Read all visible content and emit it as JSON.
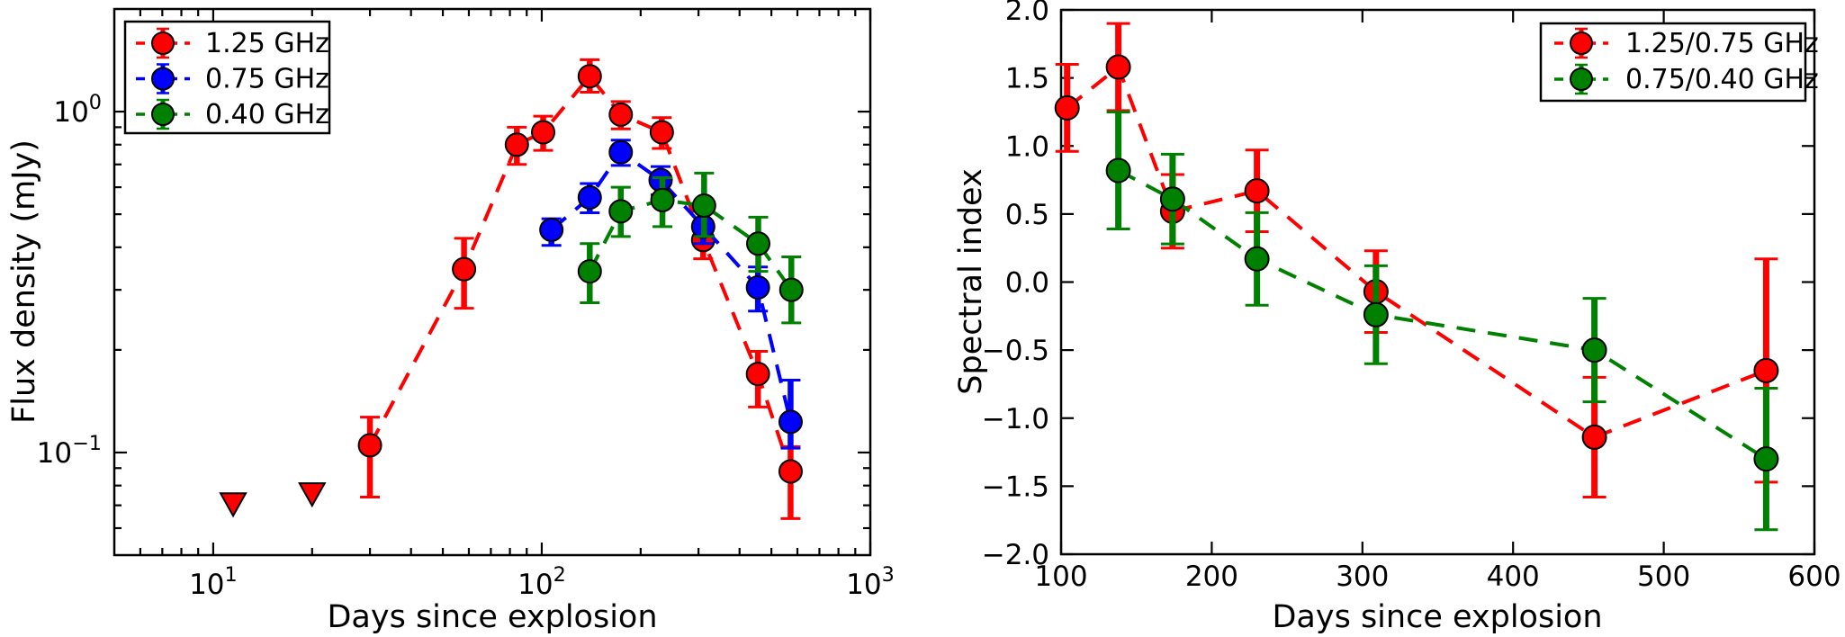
{
  "figure": {
    "description_labels": {
      "x_axis_label": "Days since explosion",
      "left_y_axis_label": "Flux density (mJy)",
      "right_y_axis_label": "Spectral index"
    }
  },
  "chart_data": [
    {
      "type": "line",
      "panel": "left",
      "title": "",
      "xlabel": "Days since explosion",
      "ylabel": "Flux density (mJy)",
      "xscale": "log",
      "yscale": "log",
      "xlim": [
        5,
        1000
      ],
      "ylim": [
        0.05,
        2.0
      ],
      "grid": false,
      "xticks": [
        {
          "value": 10,
          "exp": "1"
        },
        {
          "value": 100,
          "exp": "2"
        },
        {
          "value": 1000,
          "exp": "3"
        }
      ],
      "yticks": [
        {
          "value": 1.0,
          "exp": "0"
        },
        {
          "value": 0.1,
          "exp": "−1"
        }
      ],
      "legend_position": "upper-left",
      "line_style": "dashed",
      "series": [
        {
          "name": "1.25 GHz",
          "color": "#ff0000",
          "marker": "circle",
          "x": [
            30,
            58,
            84,
            101,
            140,
            174,
            232,
            310,
            455,
            572
          ],
          "y": [
            0.105,
            0.345,
            0.8,
            0.87,
            1.27,
            0.98,
            0.87,
            0.42,
            0.17,
            0.088
          ],
          "yerr_hi": [
            0.022,
            0.08,
            0.1,
            0.1,
            0.15,
            0.09,
            0.09,
            0.05,
            0.028,
            0.016
          ],
          "yerr_lo": [
            0.031,
            0.08,
            0.1,
            0.1,
            0.13,
            0.09,
            0.09,
            0.05,
            0.034,
            0.024
          ]
        },
        {
          "name": "0.75 GHz",
          "color": "#0000ff",
          "marker": "circle",
          "x": [
            107,
            140,
            174,
            230,
            310,
            455,
            572
          ],
          "y": [
            0.45,
            0.56,
            0.76,
            0.63,
            0.46,
            0.305,
            0.123
          ],
          "yerr_hi": [
            0.035,
            0.055,
            0.065,
            0.06,
            0.05,
            0.045,
            0.04
          ],
          "yerr_lo": [
            0.045,
            0.055,
            0.065,
            0.06,
            0.05,
            0.045,
            0.02
          ]
        },
        {
          "name": "0.40 GHz",
          "color": "#008000",
          "marker": "circle",
          "x": [
            140,
            174,
            233,
            312,
            456,
            575
          ],
          "y": [
            0.34,
            0.51,
            0.55,
            0.53,
            0.41,
            0.3
          ],
          "yerr_hi": [
            0.07,
            0.09,
            0.09,
            0.13,
            0.08,
            0.075
          ],
          "yerr_lo": [
            0.065,
            0.08,
            0.09,
            0.1,
            0.07,
            0.06
          ]
        }
      ],
      "upper_limits": {
        "series": "1.25 GHz",
        "marker": "triangle-down",
        "color": "#ff0000",
        "x": [
          11.5,
          20
        ],
        "y": [
          0.071,
          0.076
        ]
      }
    },
    {
      "type": "line",
      "panel": "right",
      "title": "",
      "xlabel": "Days since explosion",
      "ylabel": "Spectral index",
      "xscale": "linear",
      "yscale": "linear",
      "xlim": [
        100,
        600
      ],
      "ylim": [
        -2.0,
        2.0
      ],
      "grid": false,
      "xticks": [
        {
          "value": 100,
          "label": "100"
        },
        {
          "value": 200,
          "label": "200"
        },
        {
          "value": 300,
          "label": "300"
        },
        {
          "value": 400,
          "label": "400"
        },
        {
          "value": 500,
          "label": "500"
        },
        {
          "value": 600,
          "label": "600"
        }
      ],
      "yticks": [
        {
          "value": 2.0,
          "label": "2.0"
        },
        {
          "value": 1.5,
          "label": "1.5"
        },
        {
          "value": 1.0,
          "label": "1.0"
        },
        {
          "value": 0.5,
          "label": "0.5"
        },
        {
          "value": 0.0,
          "label": "0.0"
        },
        {
          "value": -0.5,
          "label": "−0.5"
        },
        {
          "value": -1.0,
          "label": "−1.0"
        },
        {
          "value": -1.5,
          "label": "−1.5"
        },
        {
          "value": -2.0,
          "label": "−2.0"
        }
      ],
      "legend_position": "upper-right",
      "line_style": "dashed",
      "series": [
        {
          "name": "1.25/0.75 GHz",
          "color": "#ff0000",
          "marker": "circle",
          "x": [
            104,
            138,
            174,
            230,
            309,
            454,
            568
          ],
          "y": [
            1.28,
            1.58,
            0.52,
            0.67,
            -0.07,
            -1.14,
            -0.65
          ],
          "yerr_hi": [
            0.32,
            0.32,
            0.27,
            0.3,
            0.3,
            0.44,
            0.82
          ],
          "yerr_lo": [
            0.32,
            0.32,
            0.27,
            0.3,
            0.3,
            0.44,
            0.82
          ]
        },
        {
          "name": "0.75/0.40 GHz",
          "color": "#008000",
          "marker": "circle",
          "x": [
            138,
            174,
            230,
            309,
            454,
            568
          ],
          "y": [
            0.82,
            0.61,
            0.17,
            -0.24,
            -0.5,
            -1.3
          ],
          "yerr_hi": [
            0.43,
            0.33,
            0.34,
            0.36,
            0.38,
            0.52
          ],
          "yerr_lo": [
            0.43,
            0.33,
            0.34,
            0.36,
            0.38,
            0.52
          ]
        }
      ]
    }
  ]
}
